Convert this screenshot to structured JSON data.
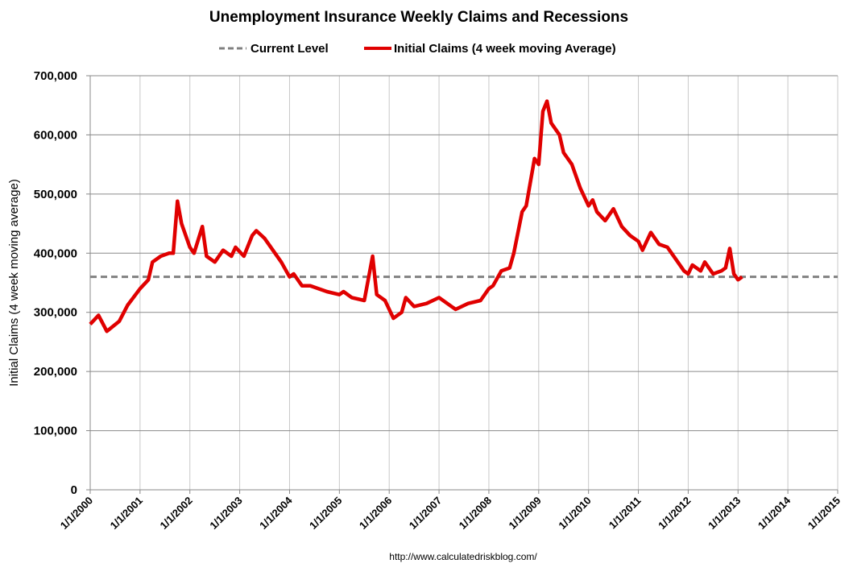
{
  "chart_data": {
    "type": "line",
    "title": "Unemployment Insurance Weekly Claims and Recessions",
    "ylabel": "Initial Claims (4 week moving average)",
    "xlabel": "",
    "source": "http://www.calculatedriskblog.com/",
    "ylim": [
      0,
      700000
    ],
    "xlim": [
      "2000-01",
      "2015-01"
    ],
    "grid": true,
    "legend_placement": "top",
    "y_ticks": [
      "0",
      "100,000",
      "200,000",
      "300,000",
      "400,000",
      "500,000",
      "600,000",
      "700,000"
    ],
    "x_ticks": [
      "1/1/2000",
      "1/1/2001",
      "1/1/2002",
      "1/1/2003",
      "1/1/2004",
      "1/1/2005",
      "1/1/2006",
      "1/1/2007",
      "1/1/2008",
      "1/1/2009",
      "1/1/2010",
      "1/1/2011",
      "1/1/2012",
      "1/1/2013",
      "1/1/2014",
      "1/1/2015"
    ],
    "colors": {
      "claims": "#e00000",
      "current": "#808080"
    },
    "series": [
      {
        "name": "Current Level",
        "style": "dashed",
        "value": 360000
      },
      {
        "name": "Initial Claims (4 week moving Average)",
        "style": "solid",
        "x": [
          "2000-01",
          "2000-03",
          "2000-05",
          "2000-08",
          "2000-10",
          "2001-01",
          "2001-03",
          "2001-04",
          "2001-06",
          "2001-08",
          "2001-09",
          "2001-10",
          "2001-11",
          "2002-01",
          "2002-02",
          "2002-04",
          "2002-05",
          "2002-07",
          "2002-09",
          "2002-11",
          "2002-12",
          "2003-02",
          "2003-04",
          "2003-05",
          "2003-07",
          "2003-09",
          "2003-11",
          "2004-01",
          "2004-02",
          "2004-04",
          "2004-06",
          "2004-10",
          "2005-01",
          "2005-02",
          "2005-04",
          "2005-07",
          "2005-09",
          "2005-10",
          "2005-12",
          "2006-01",
          "2006-02",
          "2006-04",
          "2006-05",
          "2006-07",
          "2006-10",
          "2007-01",
          "2007-04",
          "2007-05",
          "2007-08",
          "2007-11",
          "2008-01",
          "2008-02",
          "2008-04",
          "2008-06",
          "2008-07",
          "2008-09",
          "2008-10",
          "2008-12",
          "2009-01",
          "2009-02",
          "2009-03",
          "2009-04",
          "2009-06",
          "2009-07",
          "2009-09",
          "2009-11",
          "2010-01",
          "2010-02",
          "2010-03",
          "2010-05",
          "2010-07",
          "2010-09",
          "2010-11",
          "2011-01",
          "2011-02",
          "2011-04",
          "2011-06",
          "2011-08",
          "2011-10",
          "2011-12",
          "2012-01",
          "2012-02",
          "2012-04",
          "2012-05",
          "2012-07",
          "2012-09",
          "2012-10",
          "2012-11",
          "2012-12",
          "2013-01",
          "2013-02"
        ],
        "y": [
          280000,
          295000,
          268000,
          285000,
          312000,
          340000,
          355000,
          385000,
          395000,
          400000,
          400000,
          488000,
          450000,
          410000,
          400000,
          445000,
          395000,
          385000,
          405000,
          395000,
          410000,
          395000,
          430000,
          438000,
          425000,
          405000,
          385000,
          360000,
          365000,
          345000,
          345000,
          335000,
          330000,
          335000,
          325000,
          320000,
          395000,
          330000,
          320000,
          305000,
          290000,
          300000,
          325000,
          310000,
          315000,
          325000,
          310000,
          305000,
          315000,
          320000,
          340000,
          345000,
          370000,
          375000,
          400000,
          470000,
          480000,
          560000,
          550000,
          640000,
          657000,
          620000,
          600000,
          570000,
          550000,
          510000,
          480000,
          490000,
          470000,
          455000,
          475000,
          445000,
          430000,
          420000,
          405000,
          435000,
          415000,
          410000,
          390000,
          370000,
          365000,
          380000,
          370000,
          385000,
          365000,
          370000,
          375000,
          408000,
          365000,
          355000,
          360000
        ]
      }
    ]
  }
}
